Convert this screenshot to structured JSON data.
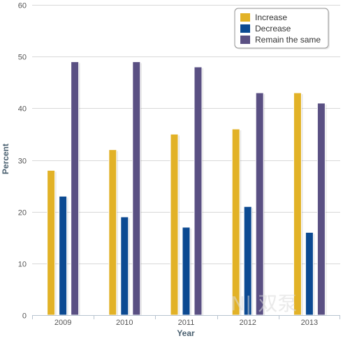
{
  "chart_data": {
    "type": "bar",
    "xlabel": "Year",
    "ylabel": "Percent",
    "ylim": [
      0,
      60
    ],
    "yticks": [
      0,
      10,
      20,
      30,
      40,
      50,
      60
    ],
    "grid": true,
    "legend_position": "top-right",
    "categories": [
      "2009",
      "2010",
      "2011",
      "2012",
      "2013"
    ],
    "series": [
      {
        "name": "Increase",
        "color": "#e2b227",
        "values": [
          28,
          32,
          35,
          36,
          43
        ]
      },
      {
        "name": "Decrease",
        "color": "#0c4a92",
        "values": [
          23,
          19,
          17,
          21,
          16
        ]
      },
      {
        "name": "Remain the same",
        "color": "#5a5083",
        "values": [
          49,
          49,
          48,
          43,
          41
        ]
      }
    ]
  },
  "watermark": {
    "text": "N|  双泵"
  }
}
